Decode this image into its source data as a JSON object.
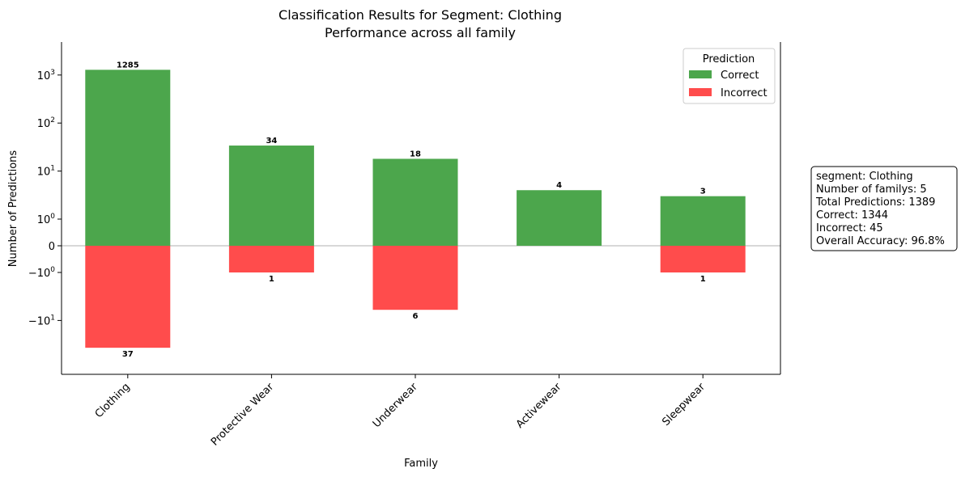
{
  "chart_data": {
    "type": "bar",
    "title": "Classification Results for Segment: Clothing",
    "subtitle": "Performance across all family",
    "xlabel": "Family",
    "ylabel": "Number of Predictions",
    "yscale": "symlog",
    "categories": [
      "Clothing",
      "Protective Wear",
      "Underwear",
      "Activewear",
      "Sleepwear"
    ],
    "series": [
      {
        "name": "Correct",
        "color": "#4ca64c",
        "values": [
          1285,
          34,
          18,
          4,
          3
        ]
      },
      {
        "name": "Incorrect",
        "color": "#ff4c4c",
        "values": [
          -37,
          -1,
          -6,
          0,
          -1
        ]
      }
    ],
    "data_labels_correct": [
      "1285",
      "34",
      "18",
      "4",
      "3"
    ],
    "data_labels_incorrect": [
      "37",
      "1",
      "6",
      "",
      "1"
    ],
    "yticks": [
      {
        "value": 1000,
        "base": "10",
        "exp": "3"
      },
      {
        "value": 100,
        "base": "10",
        "exp": "2"
      },
      {
        "value": 10,
        "base": "10",
        "exp": "1"
      },
      {
        "value": 1,
        "base": "10",
        "exp": "0"
      },
      {
        "value": 0,
        "base": "0",
        "exp": ""
      },
      {
        "value": -1,
        "base": "−10",
        "exp": "0"
      },
      {
        "value": -10,
        "base": "−10",
        "exp": "1"
      }
    ],
    "legend": {
      "title": "Prediction",
      "position": "top-right",
      "items": [
        "Correct",
        "Incorrect"
      ]
    },
    "grid": false,
    "info_box": [
      "segment: Clothing",
      "Number of familys: 5",
      "Total Predictions: 1389",
      "Correct: 1344",
      "Incorrect: 45",
      "Overall Accuracy: 96.8%"
    ]
  }
}
